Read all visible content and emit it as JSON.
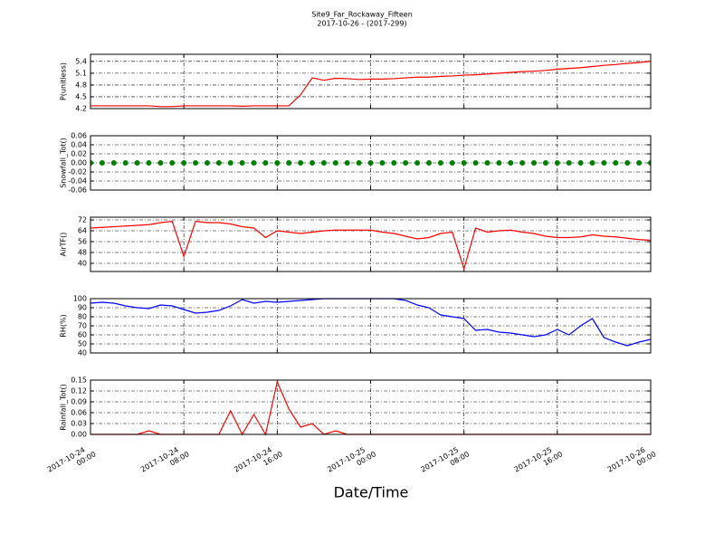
{
  "chart_data": [
    {
      "type": "line",
      "title": "Site9_Far_Rockaway_Fifteen",
      "subtitle": "2017-10-26 - (2017-299)",
      "ylabel": "P(unitless)",
      "x": [
        "2017-10-24 00:00",
        "2017-10-24 01:00",
        "2017-10-24 02:00",
        "2017-10-24 03:00",
        "2017-10-24 04:00",
        "2017-10-24 05:00",
        "2017-10-24 06:00",
        "2017-10-24 07:00",
        "2017-10-24 08:00",
        "2017-10-24 09:00",
        "2017-10-24 10:00",
        "2017-10-24 11:00",
        "2017-10-24 12:00",
        "2017-10-24 13:00",
        "2017-10-24 14:00",
        "2017-10-24 15:00",
        "2017-10-24 16:00",
        "2017-10-24 17:00",
        "2017-10-24 18:00",
        "2017-10-24 19:00",
        "2017-10-24 20:00",
        "2017-10-24 21:00",
        "2017-10-24 22:00",
        "2017-10-24 23:00",
        "2017-10-25 00:00",
        "2017-10-25 01:00",
        "2017-10-25 02:00",
        "2017-10-25 03:00",
        "2017-10-25 04:00",
        "2017-10-25 05:00",
        "2017-10-25 06:00",
        "2017-10-25 07:00",
        "2017-10-25 08:00",
        "2017-10-25 09:00",
        "2017-10-25 10:00",
        "2017-10-25 11:00",
        "2017-10-25 12:00",
        "2017-10-25 13:00",
        "2017-10-25 14:00",
        "2017-10-25 15:00",
        "2017-10-25 16:00",
        "2017-10-25 17:00",
        "2017-10-25 18:00",
        "2017-10-25 19:00",
        "2017-10-25 20:00",
        "2017-10-25 21:00",
        "2017-10-25 22:00",
        "2017-10-25 23:00",
        "2017-10-26 00:00"
      ],
      "values": [
        4.27,
        4.27,
        4.27,
        4.27,
        4.27,
        4.27,
        4.25,
        4.25,
        4.27,
        4.27,
        4.27,
        4.27,
        4.27,
        4.26,
        4.27,
        4.27,
        4.27,
        4.27,
        4.55,
        4.98,
        4.92,
        4.97,
        4.96,
        4.94,
        4.95,
        4.95,
        4.96,
        4.98,
        5.0,
        5.0,
        5.02,
        5.03,
        5.05,
        5.06,
        5.08,
        5.1,
        5.12,
        5.14,
        5.15,
        5.17,
        5.2,
        5.22,
        5.24,
        5.27,
        5.3,
        5.32,
        5.35,
        5.37,
        5.4
      ],
      "color": "#ff0000",
      "xlim": [
        "2017-10-24 00:00",
        "2017-10-26 00:00"
      ],
      "xticks": [
        "2017-10-24 00:00",
        "2017-10-24 08:00",
        "2017-10-24 16:00",
        "2017-10-25 00:00",
        "2017-10-25 08:00",
        "2017-10-25 16:00",
        "2017-10-26 00:00"
      ],
      "ylim": [
        4.2,
        5.58
      ],
      "yticks": [
        4.2,
        4.5,
        4.8,
        5.1,
        5.4
      ],
      "grid": true
    },
    {
      "type": "scatter",
      "ylabel": "Snowfall_Tot()",
      "x": [
        "2017-10-24 00:00",
        "2017-10-24 01:00",
        "2017-10-24 02:00",
        "2017-10-24 03:00",
        "2017-10-24 04:00",
        "2017-10-24 05:00",
        "2017-10-24 06:00",
        "2017-10-24 07:00",
        "2017-10-24 08:00",
        "2017-10-24 09:00",
        "2017-10-24 10:00",
        "2017-10-24 11:00",
        "2017-10-24 12:00",
        "2017-10-24 13:00",
        "2017-10-24 14:00",
        "2017-10-24 15:00",
        "2017-10-24 16:00",
        "2017-10-24 17:00",
        "2017-10-24 18:00",
        "2017-10-24 19:00",
        "2017-10-24 20:00",
        "2017-10-24 21:00",
        "2017-10-24 22:00",
        "2017-10-24 23:00",
        "2017-10-25 00:00",
        "2017-10-25 01:00",
        "2017-10-25 02:00",
        "2017-10-25 03:00",
        "2017-10-25 04:00",
        "2017-10-25 05:00",
        "2017-10-25 06:00",
        "2017-10-25 07:00",
        "2017-10-25 08:00",
        "2017-10-25 09:00",
        "2017-10-25 10:00",
        "2017-10-25 11:00",
        "2017-10-25 12:00",
        "2017-10-25 13:00",
        "2017-10-25 14:00",
        "2017-10-25 15:00",
        "2017-10-25 16:00",
        "2017-10-25 17:00",
        "2017-10-25 18:00",
        "2017-10-25 19:00",
        "2017-10-25 20:00",
        "2017-10-25 21:00",
        "2017-10-25 22:00",
        "2017-10-25 23:00",
        "2017-10-26 00:00"
      ],
      "values": [
        0,
        0,
        0,
        0,
        0,
        0,
        0,
        0,
        0,
        0,
        0,
        0,
        0,
        0,
        0,
        0,
        0,
        0,
        0,
        0,
        0,
        0,
        0,
        0,
        0,
        0,
        0,
        0,
        0,
        0,
        0,
        0,
        0,
        0,
        0,
        0,
        0,
        0,
        0,
        0,
        0,
        0,
        0,
        0,
        0,
        0,
        0,
        0,
        0
      ],
      "color": "#008000",
      "xlim": [
        "2017-10-24 00:00",
        "2017-10-26 00:00"
      ],
      "xticks": [
        "2017-10-24 00:00",
        "2017-10-24 08:00",
        "2017-10-24 16:00",
        "2017-10-25 00:00",
        "2017-10-25 08:00",
        "2017-10-25 16:00",
        "2017-10-26 00:00"
      ],
      "ylim": [
        -0.06,
        0.06
      ],
      "yticks": [
        -0.06,
        -0.04,
        -0.02,
        {
          "value": 0,
          "label": "0.00"
        },
        0.02,
        0.04,
        0.06
      ],
      "grid": true
    },
    {
      "type": "line",
      "ylabel": "AirTF()",
      "x": [
        "2017-10-24 00:00",
        "2017-10-24 01:00",
        "2017-10-24 02:00",
        "2017-10-24 03:00",
        "2017-10-24 04:00",
        "2017-10-24 05:00",
        "2017-10-24 06:00",
        "2017-10-24 07:00",
        "2017-10-24 08:00",
        "2017-10-24 09:00",
        "2017-10-24 10:00",
        "2017-10-24 11:00",
        "2017-10-24 12:00",
        "2017-10-24 13:00",
        "2017-10-24 14:00",
        "2017-10-24 15:00",
        "2017-10-24 16:00",
        "2017-10-24 17:00",
        "2017-10-24 18:00",
        "2017-10-24 19:00",
        "2017-10-24 20:00",
        "2017-10-24 21:00",
        "2017-10-24 22:00",
        "2017-10-24 23:00",
        "2017-10-25 00:00",
        "2017-10-25 01:00",
        "2017-10-25 02:00",
        "2017-10-25 03:00",
        "2017-10-25 04:00",
        "2017-10-25 05:00",
        "2017-10-25 06:00",
        "2017-10-25 07:00",
        "2017-10-25 08:00",
        "2017-10-25 09:00",
        "2017-10-25 10:00",
        "2017-10-25 11:00",
        "2017-10-25 12:00",
        "2017-10-25 13:00",
        "2017-10-25 14:00",
        "2017-10-25 15:00",
        "2017-10-25 16:00",
        "2017-10-25 17:00",
        "2017-10-25 18:00",
        "2017-10-25 19:00",
        "2017-10-25 20:00",
        "2017-10-25 21:00",
        "2017-10-25 22:00",
        "2017-10-25 23:00",
        "2017-10-26 00:00"
      ],
      "values": [
        66,
        66.5,
        67,
        67.5,
        68,
        68.5,
        70,
        71,
        45,
        71,
        70,
        70,
        69,
        67,
        66,
        59,
        64,
        63,
        62,
        63,
        64,
        64.5,
        64.5,
        64.5,
        64.5,
        63,
        62,
        60,
        58,
        59,
        62,
        63,
        36,
        66,
        63,
        64,
        64.5,
        63,
        62,
        60,
        59,
        59,
        59.5,
        61,
        60,
        59.5,
        58.5,
        57.5,
        57
      ],
      "color": "#ff0000",
      "xlim": [
        "2017-10-24 00:00",
        "2017-10-26 00:00"
      ],
      "xticks": [
        "2017-10-24 00:00",
        "2017-10-24 08:00",
        "2017-10-24 16:00",
        "2017-10-25 00:00",
        "2017-10-25 08:00",
        "2017-10-25 16:00",
        "2017-10-26 00:00"
      ],
      "ylim": [
        34,
        74
      ],
      "yticks": [
        40,
        48,
        56,
        64,
        72
      ],
      "grid": true
    },
    {
      "type": "line",
      "ylabel": "RH(%)",
      "x": [
        "2017-10-24 00:00",
        "2017-10-24 01:00",
        "2017-10-24 02:00",
        "2017-10-24 03:00",
        "2017-10-24 04:00",
        "2017-10-24 05:00",
        "2017-10-24 06:00",
        "2017-10-24 07:00",
        "2017-10-24 08:00",
        "2017-10-24 09:00",
        "2017-10-24 10:00",
        "2017-10-24 11:00",
        "2017-10-24 12:00",
        "2017-10-24 13:00",
        "2017-10-24 14:00",
        "2017-10-24 15:00",
        "2017-10-24 16:00",
        "2017-10-24 17:00",
        "2017-10-24 18:00",
        "2017-10-24 19:00",
        "2017-10-24 20:00",
        "2017-10-24 21:00",
        "2017-10-24 22:00",
        "2017-10-24 23:00",
        "2017-10-25 00:00",
        "2017-10-25 01:00",
        "2017-10-25 02:00",
        "2017-10-25 03:00",
        "2017-10-25 04:00",
        "2017-10-25 05:00",
        "2017-10-25 06:00",
        "2017-10-25 07:00",
        "2017-10-25 08:00",
        "2017-10-25 09:00",
        "2017-10-25 10:00",
        "2017-10-25 11:00",
        "2017-10-25 12:00",
        "2017-10-25 13:00",
        "2017-10-25 14:00",
        "2017-10-25 15:00",
        "2017-10-25 16:00",
        "2017-10-25 17:00",
        "2017-10-25 18:00",
        "2017-10-25 19:00",
        "2017-10-25 20:00",
        "2017-10-25 21:00",
        "2017-10-25 22:00",
        "2017-10-25 23:00",
        "2017-10-26 00:00"
      ],
      "values": [
        95,
        96,
        95,
        92,
        90,
        89,
        93,
        92,
        88,
        84,
        85,
        87,
        92,
        99,
        95,
        97,
        96,
        97,
        98,
        99,
        100,
        100,
        100,
        100,
        100,
        100,
        100,
        98,
        93,
        90,
        82,
        80,
        78,
        65,
        66,
        63,
        62,
        60,
        58,
        60,
        66,
        60,
        70,
        78,
        57,
        52,
        48,
        52,
        55
      ],
      "color": "#0000ff",
      "xlim": [
        "2017-10-24 00:00",
        "2017-10-26 00:00"
      ],
      "xticks": [
        "2017-10-24 00:00",
        "2017-10-24 08:00",
        "2017-10-24 16:00",
        "2017-10-25 00:00",
        "2017-10-25 08:00",
        "2017-10-25 16:00",
        "2017-10-26 00:00"
      ],
      "ylim": [
        40,
        100
      ],
      "yticks": [
        40,
        50,
        60,
        70,
        80,
        90,
        100
      ],
      "grid": true
    },
    {
      "type": "line",
      "ylabel": "Rainfall_Tot()",
      "xlabel": "Date/Time",
      "x": [
        "2017-10-24 00:00",
        "2017-10-24 01:00",
        "2017-10-24 02:00",
        "2017-10-24 03:00",
        "2017-10-24 04:00",
        "2017-10-24 05:00",
        "2017-10-24 06:00",
        "2017-10-24 07:00",
        "2017-10-24 08:00",
        "2017-10-24 09:00",
        "2017-10-24 10:00",
        "2017-10-24 11:00",
        "2017-10-24 12:00",
        "2017-10-24 13:00",
        "2017-10-24 14:00",
        "2017-10-24 15:00",
        "2017-10-24 16:00",
        "2017-10-24 17:00",
        "2017-10-24 18:00",
        "2017-10-24 19:00",
        "2017-10-24 20:00",
        "2017-10-24 21:00",
        "2017-10-24 22:00",
        "2017-10-24 23:00",
        "2017-10-25 00:00",
        "2017-10-25 01:00",
        "2017-10-25 02:00",
        "2017-10-25 03:00",
        "2017-10-25 04:00",
        "2017-10-25 05:00",
        "2017-10-25 06:00",
        "2017-10-25 07:00",
        "2017-10-25 08:00",
        "2017-10-25 09:00",
        "2017-10-25 10:00",
        "2017-10-25 11:00",
        "2017-10-25 12:00",
        "2017-10-25 13:00",
        "2017-10-25 14:00",
        "2017-10-25 15:00",
        "2017-10-25 16:00",
        "2017-10-25 17:00",
        "2017-10-25 18:00",
        "2017-10-25 19:00",
        "2017-10-25 20:00",
        "2017-10-25 21:00",
        "2017-10-25 22:00",
        "2017-10-25 23:00",
        "2017-10-26 00:00"
      ],
      "values": [
        0,
        0,
        0,
        0,
        0,
        0.01,
        0,
        0,
        0,
        0,
        0,
        0,
        0.065,
        0,
        0.055,
        0,
        0.145,
        0.07,
        0.02,
        0.03,
        0,
        0.01,
        0,
        0,
        0,
        0,
        0,
        0,
        0,
        0,
        0,
        0,
        0,
        0,
        0,
        0,
        0,
        0,
        0,
        0,
        0,
        0,
        0,
        0,
        0,
        0,
        0,
        0,
        0
      ],
      "color": "#ff0000",
      "xlim": [
        "2017-10-24 00:00",
        "2017-10-26 00:00"
      ],
      "xticks": [
        {
          "value": "2017-10-24 00:00",
          "label": "2017-10-24\n00:00"
        },
        {
          "value": "2017-10-24 08:00",
          "label": "2017-10-24\n08:00"
        },
        {
          "value": "2017-10-24 16:00",
          "label": "2017-10-24\n16:00"
        },
        {
          "value": "2017-10-25 00:00",
          "label": "2017-10-25\n00:00"
        },
        {
          "value": "2017-10-25 08:00",
          "label": "2017-10-25\n08:00"
        },
        {
          "value": "2017-10-25 16:00",
          "label": "2017-10-25\n16:00"
        },
        {
          "value": "2017-10-26 00:00",
          "label": "2017-10-26\n00:00"
        }
      ],
      "ylim": [
        0,
        0.15
      ],
      "yticks": [
        {
          "value": 0,
          "label": "0.00"
        },
        0.03,
        0.06,
        0.09,
        0.12,
        0.15
      ],
      "grid": true
    }
  ]
}
